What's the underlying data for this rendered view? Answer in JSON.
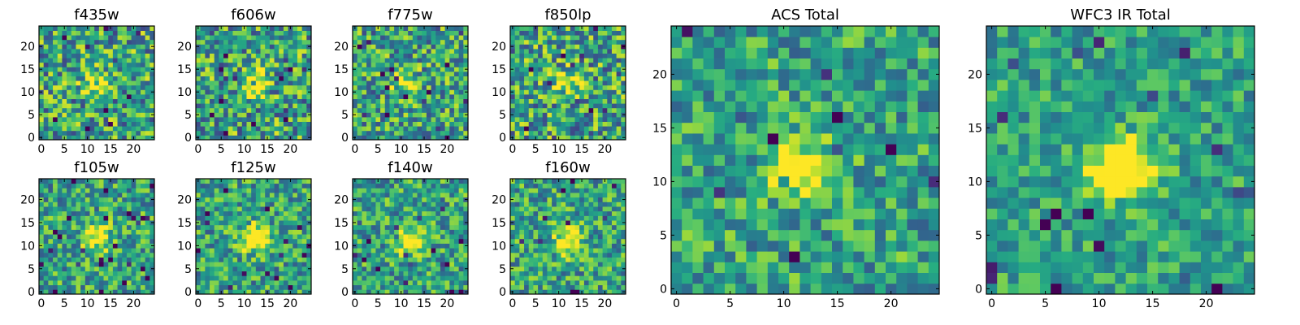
{
  "chart_data": [
    {
      "type": "heatmap",
      "title": "f435w",
      "xticks": [
        "0",
        "5",
        "10",
        "15",
        "20"
      ],
      "yticks": [
        "0",
        "5",
        "10",
        "15",
        "20"
      ],
      "xlim": [
        -0.5,
        24.5
      ],
      "ylim": [
        -0.5,
        24.5
      ],
      "colormap": "viridis",
      "grid": false,
      "center": [
        12,
        12
      ],
      "peak_strength": 0.35,
      "noise": 0.75,
      "seed": 11
    },
    {
      "type": "heatmap",
      "title": "f606w",
      "xticks": [
        "0",
        "5",
        "10",
        "15",
        "20"
      ],
      "yticks": [
        "0",
        "5",
        "10",
        "15",
        "20"
      ],
      "xlim": [
        -0.5,
        24.5
      ],
      "ylim": [
        -0.5,
        24.5
      ],
      "colormap": "viridis",
      "grid": false,
      "center": [
        12,
        12
      ],
      "peak_strength": 0.45,
      "noise": 0.75,
      "seed": 23
    },
    {
      "type": "heatmap",
      "title": "f775w",
      "xticks": [
        "0",
        "5",
        "10",
        "15",
        "20"
      ],
      "yticks": [
        "0",
        "5",
        "10",
        "15",
        "20"
      ],
      "xlim": [
        -0.5,
        24.5
      ],
      "ylim": [
        -0.5,
        24.5
      ],
      "colormap": "viridis",
      "grid": false,
      "center": [
        11,
        12
      ],
      "peak_strength": 0.35,
      "noise": 0.7,
      "seed": 37
    },
    {
      "type": "heatmap",
      "title": "f850lp",
      "xticks": [
        "0",
        "5",
        "10",
        "15",
        "20"
      ],
      "yticks": [
        "0",
        "5",
        "10",
        "15",
        "20"
      ],
      "xlim": [
        -0.5,
        24.5
      ],
      "ylim": [
        -0.5,
        24.5
      ],
      "colormap": "viridis",
      "grid": false,
      "center": [
        12,
        12
      ],
      "peak_strength": 0.35,
      "noise": 0.75,
      "seed": 41
    },
    {
      "type": "heatmap",
      "title": "ACS Total",
      "xticks": [
        "0",
        "5",
        "10",
        "15",
        "20"
      ],
      "yticks": [
        "0",
        "5",
        "10",
        "15",
        "20"
      ],
      "xlim": [
        -0.5,
        24.5
      ],
      "ylim": [
        -0.5,
        24.5
      ],
      "colormap": "viridis",
      "grid": false,
      "center": [
        12,
        11
      ],
      "peak_strength": 0.55,
      "noise": 0.55,
      "seed": 53
    },
    {
      "type": "heatmap",
      "title": "f105w",
      "xticks": [
        "0",
        "5",
        "10",
        "15",
        "20"
      ],
      "yticks": [
        "0",
        "5",
        "10",
        "15",
        "20"
      ],
      "xlim": [
        -0.5,
        24.5
      ],
      "ylim": [
        -0.5,
        24.5
      ],
      "colormap": "viridis",
      "grid": false,
      "center": [
        12,
        12
      ],
      "peak_strength": 0.55,
      "noise": 0.6,
      "seed": 67
    },
    {
      "type": "heatmap",
      "title": "f125w",
      "xticks": [
        "0",
        "5",
        "10",
        "15",
        "20"
      ],
      "yticks": [
        "0",
        "5",
        "10",
        "15",
        "20"
      ],
      "xlim": [
        -0.5,
        24.5
      ],
      "ylim": [
        -0.5,
        24.5
      ],
      "colormap": "viridis",
      "grid": false,
      "center": [
        12,
        12
      ],
      "peak_strength": 0.6,
      "noise": 0.6,
      "seed": 71
    },
    {
      "type": "heatmap",
      "title": "f140w",
      "xticks": [
        "0",
        "5",
        "10",
        "15",
        "20"
      ],
      "yticks": [
        "0",
        "5",
        "10",
        "15",
        "20"
      ],
      "xlim": [
        -0.5,
        24.5
      ],
      "ylim": [
        -0.5,
        24.5
      ],
      "colormap": "viridis",
      "grid": false,
      "center": [
        12,
        11
      ],
      "peak_strength": 0.6,
      "noise": 0.6,
      "seed": 83
    },
    {
      "type": "heatmap",
      "title": "f160w",
      "xticks": [
        "0",
        "5",
        "10",
        "15",
        "20"
      ],
      "yticks": [
        "0",
        "5",
        "10",
        "15",
        "20"
      ],
      "xlim": [
        -0.5,
        24.5
      ],
      "ylim": [
        -0.5,
        24.5
      ],
      "colormap": "viridis",
      "grid": false,
      "center": [
        12,
        11
      ],
      "peak_strength": 0.6,
      "noise": 0.6,
      "seed": 97
    },
    {
      "type": "heatmap",
      "title": "WFC3 IR Total",
      "xticks": [
        "0",
        "5",
        "10",
        "15",
        "20"
      ],
      "yticks": [
        "0",
        "5",
        "10",
        "15",
        "20"
      ],
      "xlim": [
        -0.5,
        24.5
      ],
      "ylim": [
        -0.5,
        24.5
      ],
      "colormap": "viridis",
      "grid": false,
      "center": [
        12,
        11
      ],
      "peak_strength": 0.75,
      "noise": 0.45,
      "seed": 101
    }
  ]
}
